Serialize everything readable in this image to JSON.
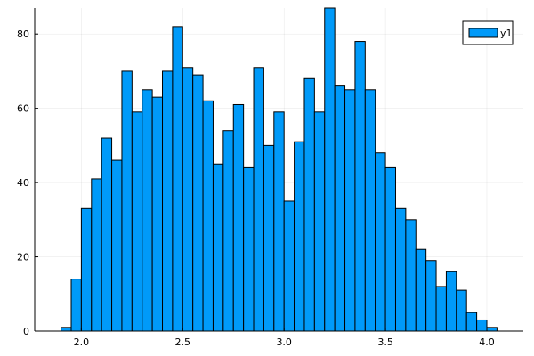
{
  "chart_data": {
    "type": "bar",
    "subtype": "histogram",
    "bin_width": 0.05,
    "bin_start": 1.9,
    "values": [
      1,
      14,
      33,
      41,
      52,
      46,
      70,
      59,
      65,
      63,
      70,
      82,
      71,
      69,
      62,
      45,
      54,
      61,
      44,
      71,
      50,
      59,
      35,
      51,
      68,
      59,
      87,
      66,
      65,
      78,
      65,
      48,
      44,
      33,
      30,
      22,
      19,
      12,
      16,
      11,
      5,
      3,
      1
    ],
    "xlim": [
      1.77,
      4.18
    ],
    "ylim": [
      0,
      87
    ],
    "xticks": [
      2.0,
      2.5,
      3.0,
      3.5,
      4.0
    ],
    "xtick_labels": [
      "2.0",
      "2.5",
      "3.0",
      "3.5",
      "4.0"
    ],
    "yticks": [
      0,
      20,
      40,
      60,
      80
    ],
    "ytick_labels": [
      "0",
      "20",
      "40",
      "60",
      "80"
    ],
    "series": [
      {
        "name": "y1",
        "color": "#009af9"
      }
    ],
    "grid": true,
    "legend_position": "top-right"
  }
}
